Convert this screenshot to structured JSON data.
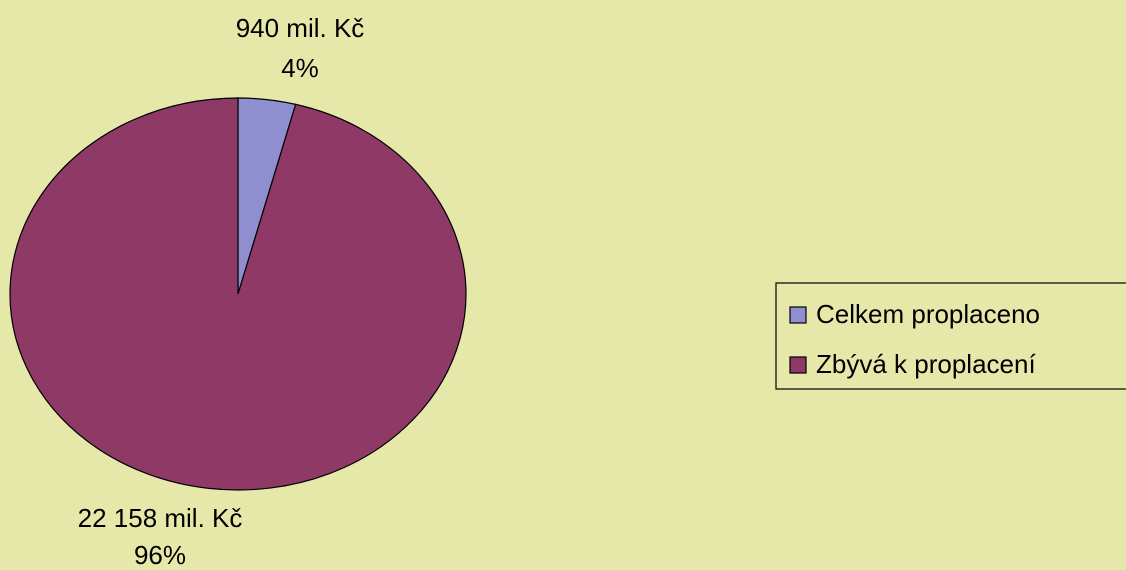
{
  "chart_data": {
    "type": "pie",
    "categories": [
      "Celkem proplaceno",
      "Zbývá k proplacení"
    ],
    "values": [
      940,
      22158
    ],
    "value_labels": [
      "940 mil. Kč",
      "22 158 mil. Kč"
    ],
    "percents": [
      4,
      96
    ],
    "percent_labels": [
      "4%",
      "96%"
    ],
    "colors": [
      "#8f8fcf",
      "#8e3966"
    ],
    "legend": "right"
  }
}
